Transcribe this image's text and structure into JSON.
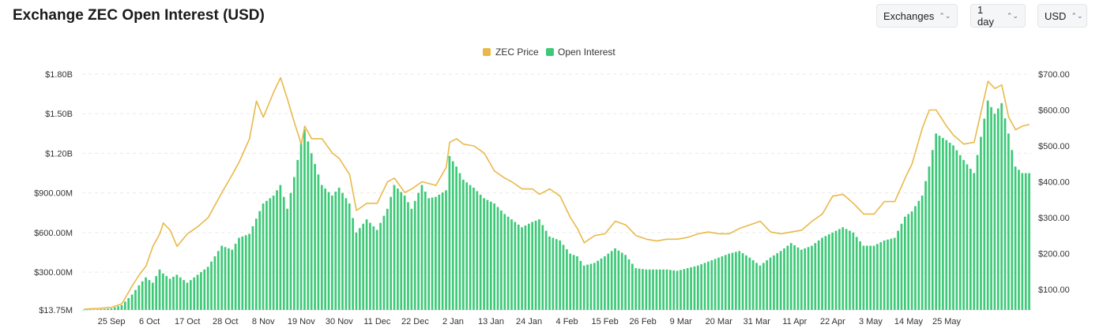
{
  "header": {
    "title": "Exchange ZEC Open Interest (USD)"
  },
  "controls": [
    {
      "label": "Exchanges"
    },
    {
      "label": "1 day"
    },
    {
      "label": "USD"
    }
  ],
  "colors": {
    "price": "#e8b94a",
    "oi": "#3ec978",
    "grid": "#e9e9e9"
  },
  "chart_data": {
    "type": "bar",
    "legend": {
      "position": "top-center",
      "entries": [
        "ZEC Price",
        "Open Interest"
      ]
    },
    "x_ticks": [
      "25 Sep",
      "6 Oct",
      "17 Oct",
      "28 Oct",
      "8 Nov",
      "19 Nov",
      "30 Nov",
      "11 Dec",
      "22 Dec",
      "2 Jan",
      "13 Jan",
      "24 Jan",
      "4 Feb",
      "15 Feb",
      "26 Feb",
      "9 Mar",
      "20 Mar",
      "31 Mar",
      "11 Apr",
      "22 Apr",
      "3 May",
      "14 May",
      "25 May"
    ],
    "y_left": {
      "ticks": [
        "$1.80B",
        "$1.50B",
        "$1.20B",
        "$900.00M",
        "$600.00M",
        "$300.00M",
        "$13.75M"
      ],
      "values": [
        1800,
        1500,
        1200,
        900,
        600,
        300,
        13.75
      ],
      "unit": "M"
    },
    "y_right": {
      "ticks": [
        "$700.00",
        "$600.00",
        "$500.00",
        "$400.00",
        "$300.00",
        "$200.00",
        "$100.00"
      ],
      "values": [
        700,
        600,
        500,
        400,
        300,
        200,
        100
      ]
    },
    "series": [
      {
        "name": "Open Interest",
        "type": "bar",
        "axis": "left",
        "keys": [
          [
            0,
            14
          ],
          [
            4,
            18
          ],
          [
            8,
            25
          ],
          [
            11,
            50
          ],
          [
            14,
            130
          ],
          [
            16,
            200
          ],
          [
            18,
            260
          ],
          [
            20,
            220
          ],
          [
            22,
            320
          ],
          [
            23,
            290
          ],
          [
            25,
            250
          ],
          [
            27,
            280
          ],
          [
            30,
            220
          ],
          [
            33,
            280
          ],
          [
            36,
            340
          ],
          [
            40,
            500
          ],
          [
            43,
            470
          ],
          [
            45,
            560
          ],
          [
            48,
            590
          ],
          [
            52,
            820
          ],
          [
            55,
            880
          ],
          [
            57,
            960
          ],
          [
            59,
            780
          ],
          [
            61,
            1020
          ],
          [
            63,
            1280
          ],
          [
            64,
            1380
          ],
          [
            66,
            1200
          ],
          [
            69,
            960
          ],
          [
            72,
            880
          ],
          [
            74,
            940
          ],
          [
            77,
            820
          ],
          [
            79,
            600
          ],
          [
            82,
            700
          ],
          [
            85,
            620
          ],
          [
            88,
            780
          ],
          [
            90,
            960
          ],
          [
            93,
            880
          ],
          [
            95,
            780
          ],
          [
            98,
            960
          ],
          [
            100,
            860
          ],
          [
            102,
            870
          ],
          [
            105,
            920
          ],
          [
            106,
            1180
          ],
          [
            108,
            1100
          ],
          [
            110,
            1000
          ],
          [
            113,
            940
          ],
          [
            116,
            860
          ],
          [
            119,
            820
          ],
          [
            122,
            740
          ],
          [
            124,
            700
          ],
          [
            127,
            640
          ],
          [
            130,
            680
          ],
          [
            132,
            700
          ],
          [
            135,
            570
          ],
          [
            138,
            540
          ],
          [
            141,
            440
          ],
          [
            143,
            420
          ],
          [
            145,
            350
          ],
          [
            148,
            370
          ],
          [
            151,
            420
          ],
          [
            154,
            480
          ],
          [
            157,
            430
          ],
          [
            160,
            330
          ],
          [
            163,
            320
          ],
          [
            166,
            320
          ],
          [
            169,
            320
          ],
          [
            172,
            310
          ],
          [
            175,
            330
          ],
          [
            178,
            350
          ],
          [
            181,
            380
          ],
          [
            184,
            410
          ],
          [
            187,
            440
          ],
          [
            190,
            460
          ],
          [
            193,
            410
          ],
          [
            196,
            350
          ],
          [
            199,
            410
          ],
          [
            202,
            460
          ],
          [
            205,
            520
          ],
          [
            208,
            470
          ],
          [
            211,
            500
          ],
          [
            214,
            560
          ],
          [
            217,
            600
          ],
          [
            220,
            640
          ],
          [
            223,
            600
          ],
          [
            226,
            500
          ],
          [
            229,
            500
          ],
          [
            232,
            540
          ],
          [
            235,
            560
          ],
          [
            238,
            720
          ],
          [
            240,
            760
          ],
          [
            243,
            880
          ],
          [
            245,
            1100
          ],
          [
            247,
            1350
          ],
          [
            250,
            1300
          ],
          [
            252,
            1260
          ],
          [
            255,
            1150
          ],
          [
            258,
            1050
          ],
          [
            262,
            1600
          ],
          [
            264,
            1500
          ],
          [
            266,
            1580
          ],
          [
            268,
            1350
          ],
          [
            270,
            1100
          ],
          [
            272,
            1050
          ],
          [
            274,
            1050
          ]
        ]
      },
      {
        "name": "ZEC Price",
        "type": "line",
        "axis": "right",
        "keys": [
          [
            0,
            45
          ],
          [
            4,
            47
          ],
          [
            8,
            50
          ],
          [
            11,
            60
          ],
          [
            14,
            110
          ],
          [
            16,
            140
          ],
          [
            18,
            165
          ],
          [
            20,
            220
          ],
          [
            22,
            255
          ],
          [
            23,
            285
          ],
          [
            25,
            265
          ],
          [
            27,
            220
          ],
          [
            30,
            255
          ],
          [
            33,
            275
          ],
          [
            36,
            300
          ],
          [
            40,
            370
          ],
          [
            43,
            420
          ],
          [
            45,
            455
          ],
          [
            48,
            520
          ],
          [
            50,
            625
          ],
          [
            52,
            580
          ],
          [
            55,
            650
          ],
          [
            57,
            690
          ],
          [
            59,
            630
          ],
          [
            61,
            565
          ],
          [
            63,
            505
          ],
          [
            64,
            555
          ],
          [
            66,
            520
          ],
          [
            69,
            520
          ],
          [
            72,
            480
          ],
          [
            74,
            465
          ],
          [
            77,
            420
          ],
          [
            79,
            320
          ],
          [
            82,
            340
          ],
          [
            85,
            340
          ],
          [
            88,
            400
          ],
          [
            90,
            410
          ],
          [
            93,
            370
          ],
          [
            95,
            380
          ],
          [
            98,
            400
          ],
          [
            100,
            395
          ],
          [
            102,
            390
          ],
          [
            105,
            440
          ],
          [
            106,
            510
          ],
          [
            108,
            520
          ],
          [
            110,
            505
          ],
          [
            113,
            500
          ],
          [
            116,
            480
          ],
          [
            119,
            430
          ],
          [
            122,
            410
          ],
          [
            124,
            400
          ],
          [
            127,
            380
          ],
          [
            130,
            380
          ],
          [
            132,
            365
          ],
          [
            135,
            380
          ],
          [
            138,
            360
          ],
          [
            141,
            300
          ],
          [
            143,
            270
          ],
          [
            145,
            230
          ],
          [
            148,
            250
          ],
          [
            151,
            255
          ],
          [
            154,
            290
          ],
          [
            157,
            280
          ],
          [
            160,
            250
          ],
          [
            163,
            240
          ],
          [
            166,
            235
          ],
          [
            169,
            240
          ],
          [
            172,
            240
          ],
          [
            175,
            245
          ],
          [
            178,
            255
          ],
          [
            181,
            260
          ],
          [
            184,
            255
          ],
          [
            187,
            255
          ],
          [
            190,
            270
          ],
          [
            193,
            280
          ],
          [
            196,
            290
          ],
          [
            199,
            260
          ],
          [
            202,
            255
          ],
          [
            205,
            260
          ],
          [
            208,
            265
          ],
          [
            211,
            290
          ],
          [
            214,
            310
          ],
          [
            217,
            360
          ],
          [
            220,
            365
          ],
          [
            223,
            340
          ],
          [
            226,
            310
          ],
          [
            229,
            310
          ],
          [
            232,
            345
          ],
          [
            235,
            345
          ],
          [
            238,
            410
          ],
          [
            240,
            450
          ],
          [
            243,
            550
          ],
          [
            245,
            600
          ],
          [
            247,
            600
          ],
          [
            250,
            555
          ],
          [
            252,
            530
          ],
          [
            255,
            505
          ],
          [
            258,
            510
          ],
          [
            262,
            680
          ],
          [
            264,
            660
          ],
          [
            266,
            670
          ],
          [
            268,
            580
          ],
          [
            270,
            545
          ],
          [
            272,
            555
          ],
          [
            274,
            560
          ]
        ]
      }
    ]
  }
}
